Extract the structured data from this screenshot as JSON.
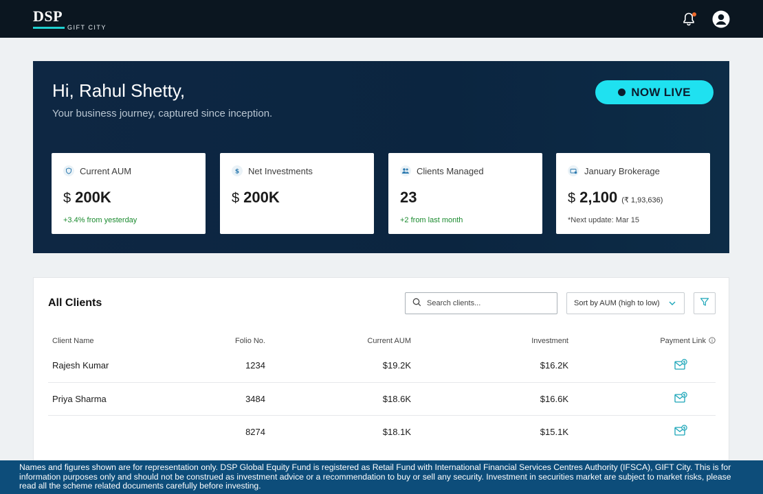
{
  "brand": {
    "name": "DSP",
    "sub": "GIFT CITY"
  },
  "hero": {
    "greeting": "Hi, Rahul Shetty,",
    "subtitle": "Your business journey, captured since inception.",
    "live_label": "NOW LIVE"
  },
  "stats": [
    {
      "label": "Current AUM",
      "currency": "$",
      "value": "200K",
      "note": "+3.4% from yesterday",
      "icon": "shield-icon"
    },
    {
      "label": "Net Investments",
      "currency": "$",
      "value": "200K",
      "note": "",
      "icon": "dollar-icon"
    },
    {
      "label": "Clients Managed",
      "currency": "",
      "value": "23",
      "note": "+2 from last month",
      "icon": "users-icon"
    },
    {
      "label": "January Brokerage",
      "currency": "$",
      "value": "2,100",
      "inr": "(₹ 1,93,636)",
      "note": "*Next update: Mar 15",
      "icon": "brokerage-icon"
    }
  ],
  "clients": {
    "title": "All Clients",
    "search_placeholder": "Search clients...",
    "sort_label": "Sort by AUM (high to low)",
    "columns": [
      "Client Name",
      "Folio No.",
      "Current AUM",
      "Investment",
      "Payment Link"
    ],
    "rows": [
      {
        "name": "Rajesh Kumar",
        "folio": "1234",
        "aum": "$19.2K",
        "investment": "$16.2K"
      },
      {
        "name": "Priya Sharma",
        "folio": "3484",
        "aum": "$18.6K",
        "investment": "$16.6K"
      },
      {
        "name": "",
        "folio": "8274",
        "aum": "$18.1K",
        "investment": "$15.1K"
      }
    ]
  },
  "disclaimer": "Names and figures shown are for representation only. DSP Global Equity Fund is registered as Retail Fund with International Financial Services Centres Authority (IFSCA), GIFT City. This is for information purposes only and should not be construed as investment advice or a recommendation to buy or sell any security. Investment in securities market are subject to market risks, please read all the scheme related documents carefully before investing.",
  "colors": {
    "accent": "#1fe1f0",
    "hero_bg": "#0e2743",
    "positive": "#1a8a2e",
    "footer_bg": "#0d4d7a"
  }
}
